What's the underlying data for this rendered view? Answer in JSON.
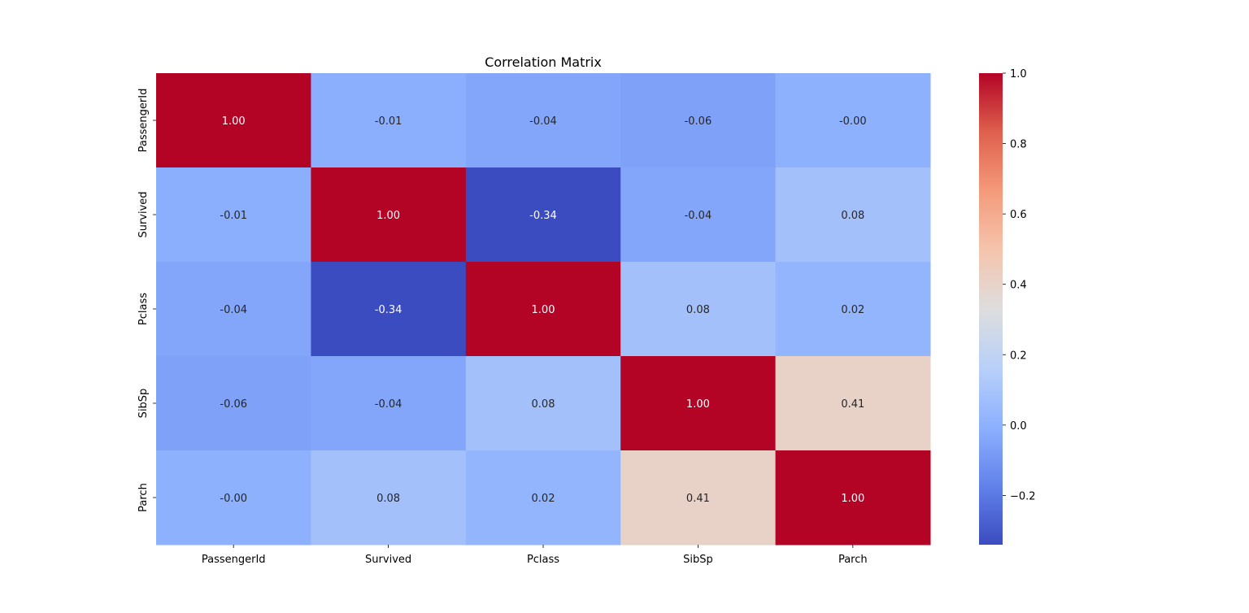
{
  "chart_data": {
    "type": "heatmap",
    "title": "Correlation Matrix",
    "xlabel": "",
    "ylabel": "",
    "x_categories": [
      "PassengerId",
      "Survived",
      "Pclass",
      "SibSp",
      "Parch"
    ],
    "y_categories": [
      "PassengerId",
      "Survived",
      "Pclass",
      "SibSp",
      "Parch"
    ],
    "values": [
      [
        1.0,
        -0.01,
        -0.04,
        -0.06,
        -0.0
      ],
      [
        -0.01,
        1.0,
        -0.34,
        -0.04,
        0.08
      ],
      [
        -0.04,
        -0.34,
        1.0,
        0.08,
        0.02
      ],
      [
        -0.06,
        -0.04,
        0.08,
        1.0,
        0.41
      ],
      [
        -0.0,
        0.08,
        0.02,
        0.41,
        1.0
      ]
    ],
    "cell_labels": [
      [
        "1.00",
        "-0.01",
        "-0.04",
        "-0.06",
        "-0.00"
      ],
      [
        "-0.01",
        "1.00",
        "-0.34",
        "-0.04",
        "0.08"
      ],
      [
        "-0.04",
        "-0.34",
        "1.00",
        "0.08",
        "0.02"
      ],
      [
        "-0.06",
        "-0.04",
        "0.08",
        "1.00",
        "0.41"
      ],
      [
        "-0.00",
        "0.08",
        "0.02",
        "0.41",
        "1.00"
      ]
    ],
    "colormap": "coolwarm",
    "colorbar": {
      "vmin": -0.34,
      "vmax": 1.0,
      "ticks": [
        -0.2,
        0.0,
        0.2,
        0.4,
        0.6,
        0.8,
        1.0
      ],
      "tick_labels": [
        "−0.2",
        "0.0",
        "0.2",
        "0.4",
        "0.6",
        "0.8",
        "1.0"
      ]
    },
    "grid": false,
    "legend": "none",
    "colors": {
      "low": "#3b4cc0",
      "mid": "#dddddd",
      "high": "#b40426"
    }
  }
}
